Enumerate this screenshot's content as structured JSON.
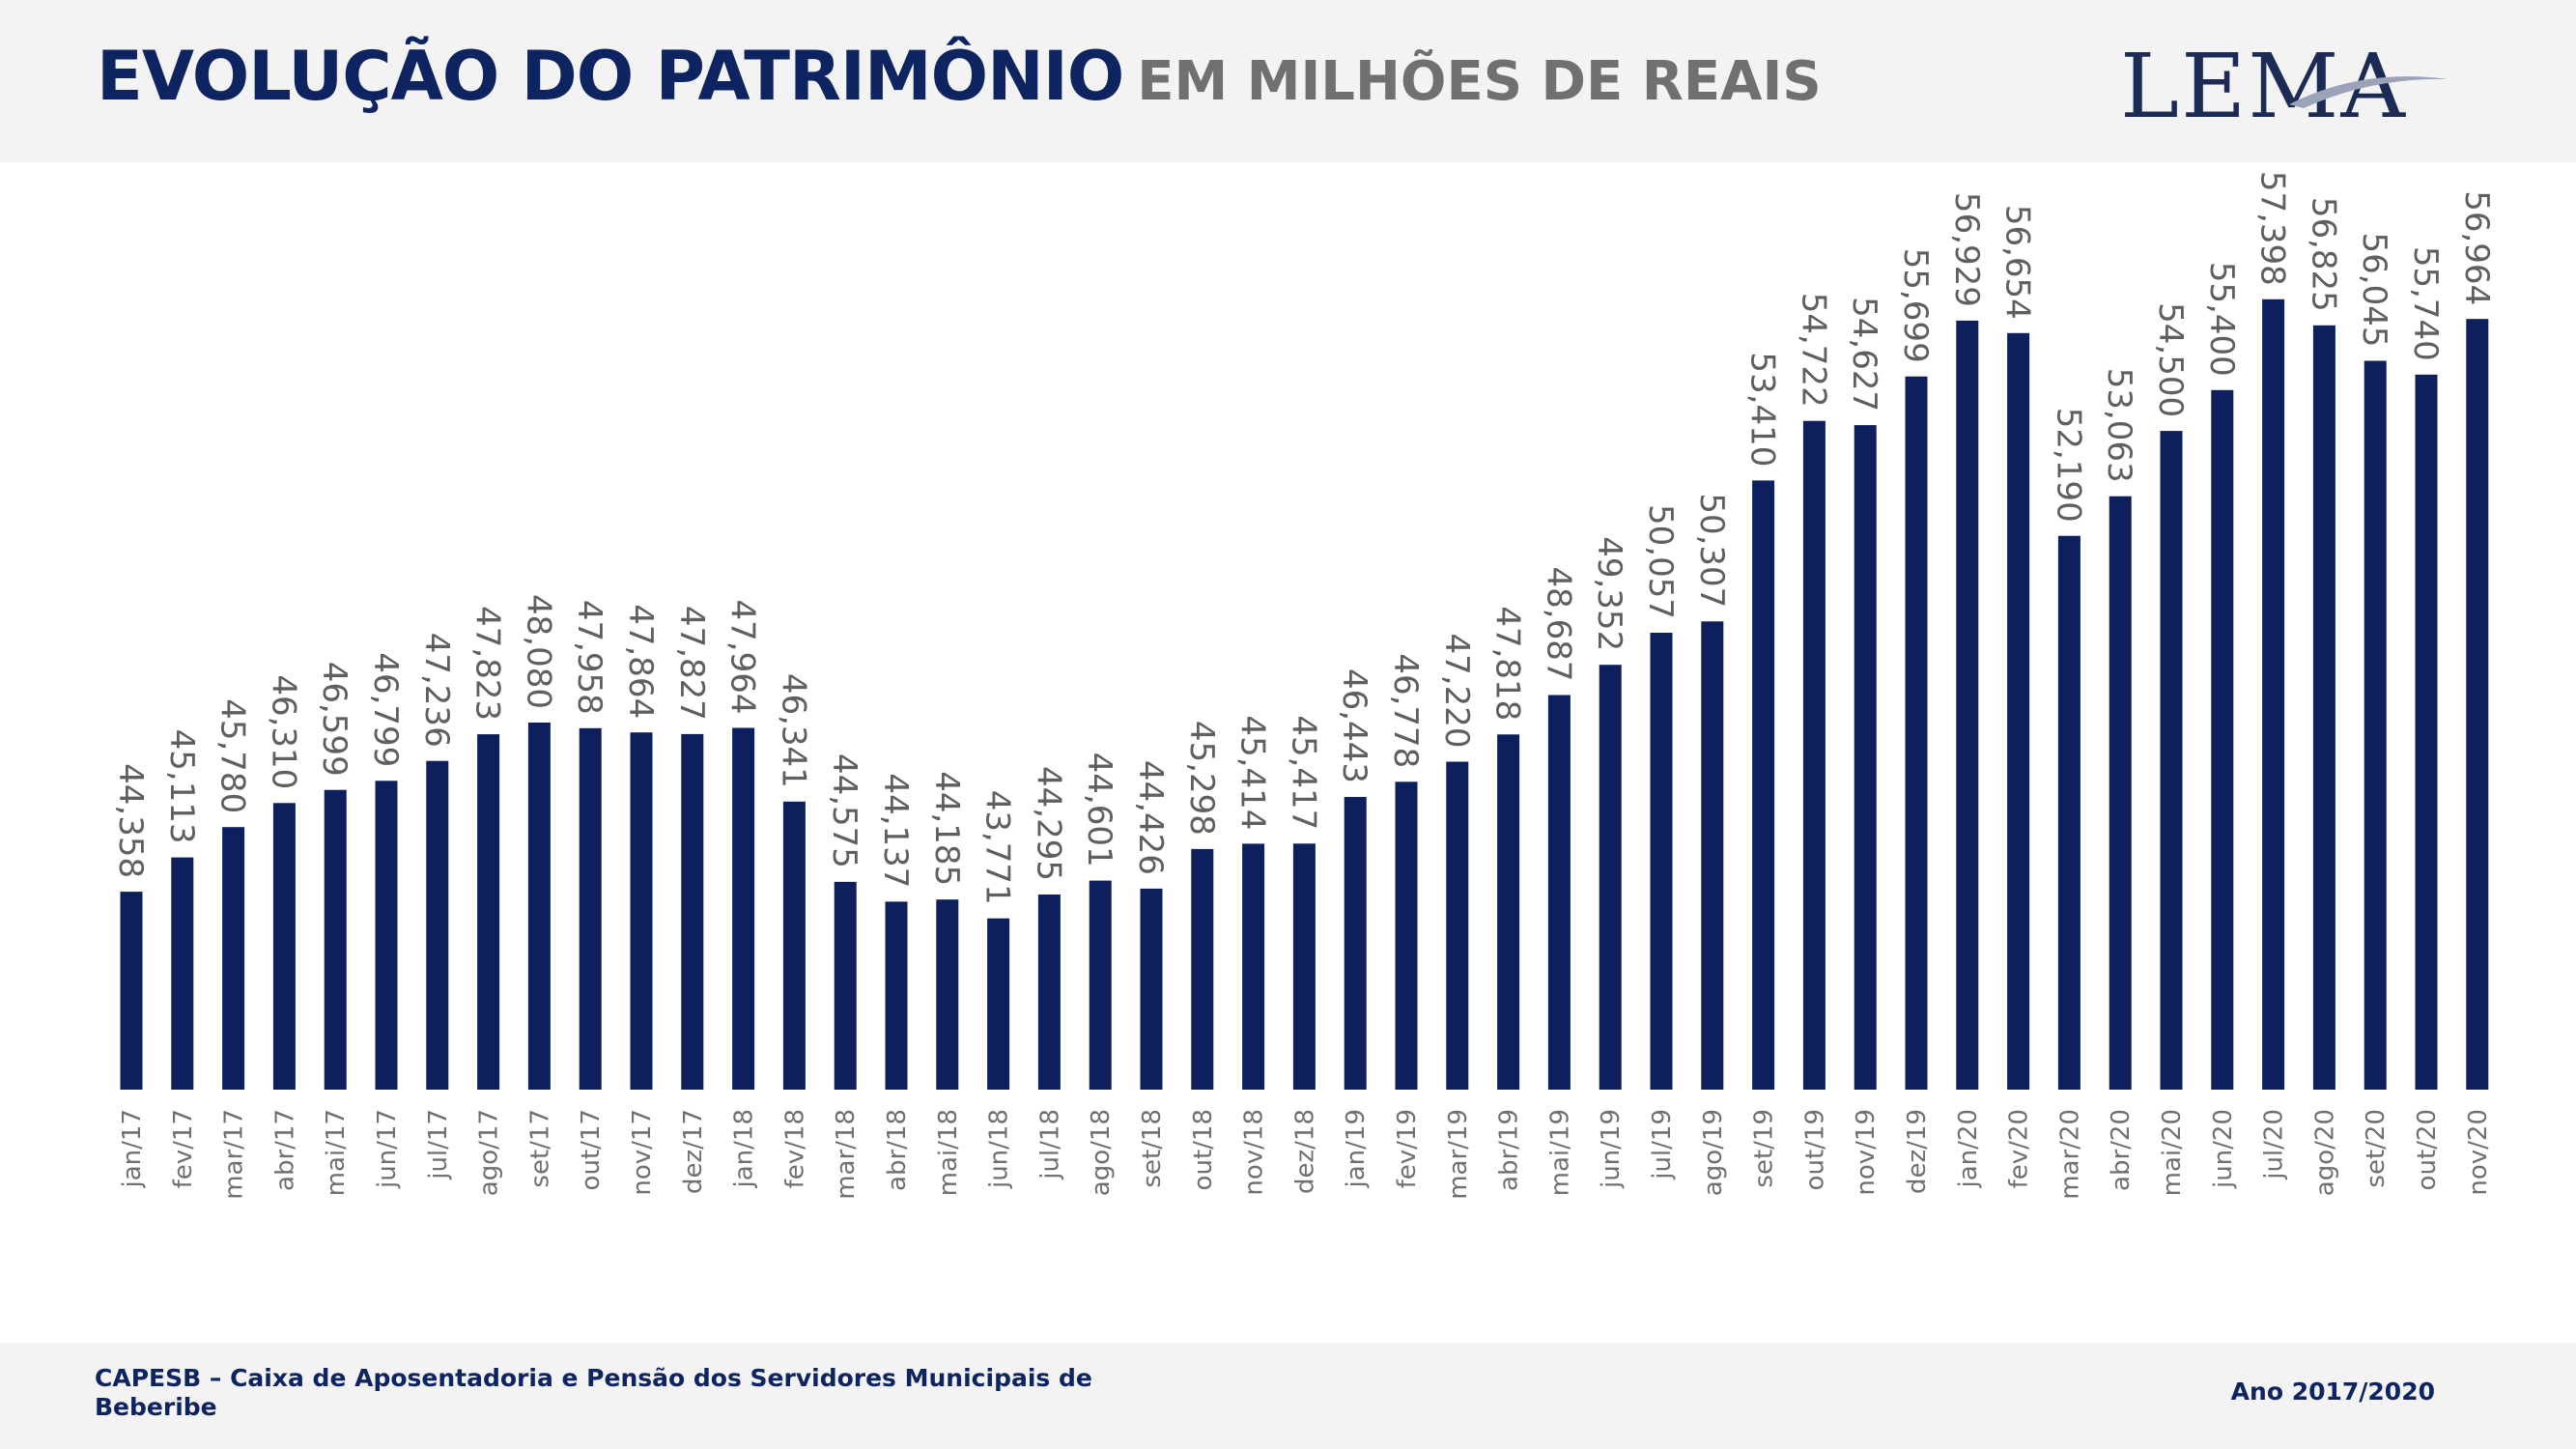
{
  "header": {
    "title_main": "EVOLUÇÃO DO PATRIMÔNIO",
    "title_sub": "EM MILHÕES DE REAIS",
    "logo_text": "LEMA"
  },
  "footer": {
    "entity": "CAPESB – Caixa de Aposentadoria e Pensão dos Servidores Municipais de Beberibe",
    "period": "Ano 2017/2020"
  },
  "colors": {
    "bar": "#0d1f5c",
    "title": "#0d2461",
    "subtitle": "#707070",
    "header_bg": "#f3f3f3"
  },
  "chart_data": {
    "type": "bar",
    "title": "EVOLUÇÃO DO PATRIMÔNIO EM MILHÕES DE REAIS",
    "xlabel": "",
    "ylabel": "",
    "ylim": [
      40000,
      58500
    ],
    "grid": false,
    "legend": "none",
    "categories": [
      "jan/17",
      "fev/17",
      "mar/17",
      "abr/17",
      "mai/17",
      "jun/17",
      "jul/17",
      "ago/17",
      "set/17",
      "out/17",
      "nov/17",
      "dez/17",
      "jan/18",
      "fev/18",
      "mar/18",
      "abr/18",
      "mai/18",
      "jun/18",
      "jul/18",
      "ago/18",
      "set/18",
      "out/18",
      "nov/18",
      "dez/18",
      "jan/19",
      "fev/19",
      "mar/19",
      "abr/19",
      "mai/19",
      "jun/19",
      "jul/19",
      "ago/19",
      "set/19",
      "out/19",
      "nov/19",
      "dez/19",
      "jan/20",
      "fev/20",
      "mar/20",
      "abr/20",
      "mai/20",
      "jun/20",
      "jul/20",
      "ago/20",
      "set/20",
      "out/20",
      "nov/20"
    ],
    "values": [
      44358,
      45113,
      45780,
      46310,
      46599,
      46799,
      47236,
      47823,
      48080,
      47958,
      47864,
      47827,
      47964,
      46341,
      44575,
      44137,
      44185,
      43771,
      44295,
      44601,
      44426,
      45298,
      45414,
      45417,
      46443,
      46778,
      47220,
      47818,
      48687,
      49352,
      50057,
      50307,
      53410,
      54722,
      54627,
      55699,
      56929,
      56654,
      52190,
      53063,
      54500,
      55400,
      57398,
      56825,
      56045,
      55740,
      56964
    ],
    "labels": [
      "44,358",
      "45,113",
      "45,780",
      "46,310",
      "46,599",
      "46,799",
      "47,236",
      "47,823",
      "48,080",
      "47,958",
      "47,864",
      "47,827",
      "47,964",
      "46,341",
      "44,575",
      "44,137",
      "44,185",
      "43,771",
      "44,295",
      "44,601",
      "44,426",
      "45,298",
      "45,414",
      "45,417",
      "46,443",
      "46,778",
      "47,220",
      "47,818",
      "48,687",
      "49,352",
      "50,057",
      "50,307",
      "53,410",
      "54,722",
      "54,627",
      "55,699",
      "56,929",
      "56,654",
      "52,190",
      "53,063",
      "54,500",
      "55,400",
      "57,398",
      "56,825",
      "56,045",
      "55,740",
      "56,964"
    ]
  }
}
